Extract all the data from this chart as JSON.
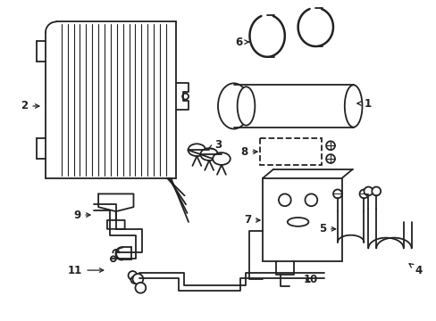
{
  "background_color": "#ffffff",
  "line_color": "#222222",
  "line_width": 1.3,
  "label_fontsize": 8.5,
  "fig_w": 4.89,
  "fig_h": 3.6,
  "dpi": 100
}
